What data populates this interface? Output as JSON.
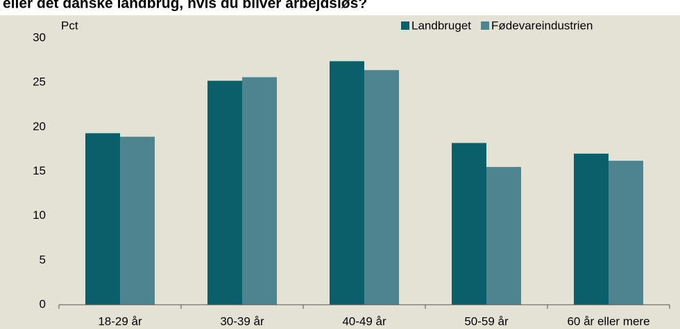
{
  "chart_data": {
    "type": "bar",
    "title": "eller det danske landbrug, hvis du bliver arbejdsløs?",
    "y_label": "Pct",
    "categories": [
      "18-29 år",
      "30-39 år",
      "40-49 år",
      "50-59 år",
      "60 år eller mere"
    ],
    "series": [
      {
        "name": "Landbruget",
        "color": "#0b5f6b",
        "values": [
          19.3,
          25.2,
          27.4,
          18.2,
          17.0
        ]
      },
      {
        "name": "Fødevareindustrien",
        "color": "#4e8390",
        "values": [
          18.9,
          25.6,
          26.4,
          15.5,
          16.2
        ]
      }
    ],
    "ylim": [
      0,
      30
    ],
    "yticks": [
      0,
      5,
      10,
      15,
      20,
      25,
      30
    ],
    "grid": false,
    "legend": "top-right"
  }
}
